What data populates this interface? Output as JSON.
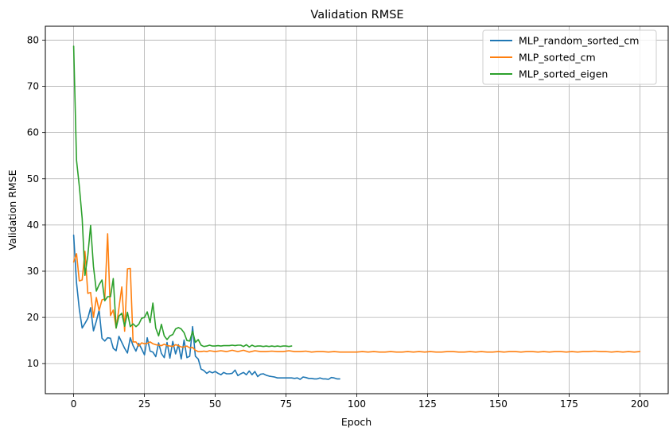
{
  "chart_data": {
    "type": "line",
    "title": "Validation RMSE",
    "xlabel": "Epoch",
    "ylabel": "Validation RMSE",
    "xlim": [
      -10,
      210
    ],
    "ylim": [
      3.5,
      83
    ],
    "xticks": [
      0,
      25,
      50,
      75,
      100,
      125,
      150,
      175,
      200
    ],
    "yticks": [
      10,
      20,
      30,
      40,
      50,
      60,
      70,
      80
    ],
    "grid": true,
    "legend_position": "top-right",
    "series": [
      {
        "name": "MLP_random_sorted_cm",
        "color": "#1f77b4",
        "x": [
          0,
          1,
          2,
          3,
          4,
          5,
          6,
          7,
          8,
          9,
          10,
          11,
          12,
          13,
          14,
          15,
          16,
          17,
          18,
          19,
          20,
          21,
          22,
          23,
          24,
          25,
          26,
          27,
          28,
          29,
          30,
          31,
          32,
          33,
          34,
          35,
          36,
          37,
          38,
          39,
          40,
          41,
          42,
          43,
          44,
          45,
          46,
          47,
          48,
          49,
          50,
          51,
          52,
          53,
          54,
          55,
          56,
          57,
          58,
          59,
          60,
          61,
          62,
          63,
          64,
          65,
          66,
          67,
          68,
          69,
          70,
          71,
          72,
          73,
          74,
          75,
          76,
          77,
          78,
          79,
          80,
          81,
          82,
          83,
          84,
          85,
          86,
          87,
          88,
          89,
          90,
          91,
          92,
          93,
          94
        ],
        "y": [
          37.8,
          27.5,
          21.8,
          17.7,
          18.7,
          19.8,
          22.1,
          17.1,
          19.2,
          21.6,
          15.5,
          14.9,
          15.6,
          15.5,
          13.3,
          12.8,
          15.9,
          14.6,
          13.3,
          12.3,
          15.6,
          13.9,
          12.7,
          14.4,
          13.2,
          11.9,
          15.6,
          12.7,
          12.5,
          11.5,
          14.5,
          12.2,
          11.3,
          14.6,
          11.2,
          14.8,
          12.1,
          14.1,
          11.0,
          15.1,
          11.3,
          11.6,
          18.0,
          11.6,
          11.0,
          8.8,
          8.5,
          7.9,
          8.3,
          8.0,
          8.3,
          7.9,
          7.6,
          8.1,
          7.8,
          7.8,
          7.9,
          8.6,
          7.4,
          7.8,
          8.1,
          7.6,
          8.4,
          7.6,
          8.3,
          7.2,
          7.7,
          7.8,
          7.5,
          7.3,
          7.2,
          7.1,
          6.9,
          6.9,
          6.9,
          6.9,
          6.9,
          6.9,
          6.8,
          6.9,
          6.6,
          7.1,
          7.0,
          6.8,
          6.8,
          6.7,
          6.7,
          6.9,
          6.7,
          6.7,
          6.6,
          7.0,
          6.9,
          6.7,
          6.7
        ]
      },
      {
        "name": "MLP_sorted_cm",
        "color": "#ff7f0e",
        "x": [
          0,
          1,
          2,
          3,
          4,
          5,
          6,
          7,
          8,
          9,
          10,
          11,
          12,
          13,
          14,
          15,
          16,
          17,
          18,
          19,
          20,
          21,
          22,
          23,
          24,
          25,
          26,
          27,
          28,
          29,
          30,
          31,
          32,
          33,
          34,
          35,
          36,
          37,
          38,
          39,
          40,
          41,
          42,
          43,
          44,
          45,
          46,
          47,
          48,
          49,
          50,
          52,
          54,
          56,
          58,
          60,
          62,
          64,
          66,
          68,
          70,
          72,
          74,
          76,
          78,
          80,
          82,
          84,
          86,
          88,
          90,
          92,
          94,
          96,
          98,
          100,
          102,
          104,
          106,
          108,
          110,
          112,
          114,
          116,
          118,
          120,
          122,
          124,
          126,
          128,
          130,
          132,
          134,
          136,
          138,
          140,
          142,
          144,
          146,
          148,
          150,
          152,
          154,
          156,
          158,
          160,
          162,
          164,
          166,
          168,
          170,
          172,
          174,
          176,
          178,
          180,
          182,
          184,
          186,
          188,
          190,
          192,
          194,
          196,
          198,
          200
        ],
        "y": [
          32.0,
          33.8,
          27.9,
          28.1,
          34.3,
          25.2,
          25.4,
          20.0,
          24.3,
          21.5,
          23.8,
          24.0,
          38.1,
          20.4,
          21.6,
          17.7,
          22.0,
          26.6,
          17.0,
          30.5,
          30.6,
          14.7,
          14.7,
          13.8,
          14.5,
          14.3,
          14.4,
          14.7,
          14.3,
          14.1,
          14.0,
          13.9,
          14.2,
          13.9,
          13.8,
          13.7,
          14.1,
          13.9,
          13.6,
          13.6,
          13.8,
          13.4,
          13.5,
          12.9,
          12.6,
          12.6,
          12.7,
          12.6,
          12.8,
          12.7,
          12.6,
          12.8,
          12.6,
          12.9,
          12.6,
          12.9,
          12.5,
          12.8,
          12.6,
          12.6,
          12.7,
          12.6,
          12.6,
          12.8,
          12.6,
          12.6,
          12.7,
          12.5,
          12.6,
          12.6,
          12.5,
          12.6,
          12.5,
          12.5,
          12.5,
          12.5,
          12.6,
          12.5,
          12.6,
          12.5,
          12.5,
          12.6,
          12.5,
          12.5,
          12.6,
          12.5,
          12.6,
          12.5,
          12.6,
          12.5,
          12.5,
          12.6,
          12.6,
          12.5,
          12.5,
          12.6,
          12.5,
          12.6,
          12.5,
          12.5,
          12.6,
          12.5,
          12.6,
          12.6,
          12.5,
          12.6,
          12.6,
          12.5,
          12.6,
          12.5,
          12.6,
          12.6,
          12.5,
          12.6,
          12.5,
          12.6,
          12.6,
          12.7,
          12.6,
          12.6,
          12.5,
          12.6,
          12.5,
          12.6,
          12.5,
          12.6
        ],
        "note_last_point": 12.6
      },
      {
        "name": "MLP_sorted_eigen",
        "color": "#2ca02c",
        "x": [
          0,
          1,
          2,
          3,
          4,
          5,
          6,
          7,
          8,
          9,
          10,
          11,
          12,
          13,
          14,
          15,
          16,
          17,
          18,
          19,
          20,
          21,
          22,
          23,
          24,
          25,
          26,
          27,
          28,
          29,
          30,
          31,
          32,
          33,
          34,
          35,
          36,
          37,
          38,
          39,
          40,
          41,
          42,
          43,
          44,
          45,
          46,
          47,
          48,
          49,
          50,
          51,
          52,
          53,
          54,
          55,
          56,
          57,
          58,
          59,
          60,
          61,
          62,
          63,
          64,
          65,
          66,
          67,
          68,
          69,
          70,
          71,
          72,
          73,
          74,
          75,
          76,
          77
        ],
        "y": [
          78.7,
          54.0,
          48.4,
          41.4,
          29.1,
          33.4,
          39.9,
          31.0,
          25.7,
          27.1,
          28.1,
          23.6,
          24.5,
          24.5,
          28.4,
          17.7,
          20.3,
          20.9,
          18.1,
          21.1,
          18.0,
          18.6,
          18.0,
          18.5,
          19.8,
          20.0,
          21.2,
          18.9,
          23.1,
          17.7,
          16.0,
          18.5,
          16.0,
          15.2,
          16.0,
          16.3,
          17.5,
          17.8,
          17.5,
          16.7,
          15.0,
          14.9,
          17.0,
          14.6,
          15.2,
          14.0,
          13.7,
          13.8,
          14.0,
          13.8,
          13.8,
          13.9,
          13.8,
          13.9,
          13.9,
          13.9,
          14.0,
          13.9,
          14.0,
          14.0,
          13.7,
          14.1,
          13.6,
          14.0,
          13.7,
          13.8,
          13.8,
          13.7,
          13.8,
          13.7,
          13.8,
          13.7,
          13.8,
          13.7,
          13.8,
          13.8,
          13.7,
          13.8
        ]
      }
    ]
  }
}
